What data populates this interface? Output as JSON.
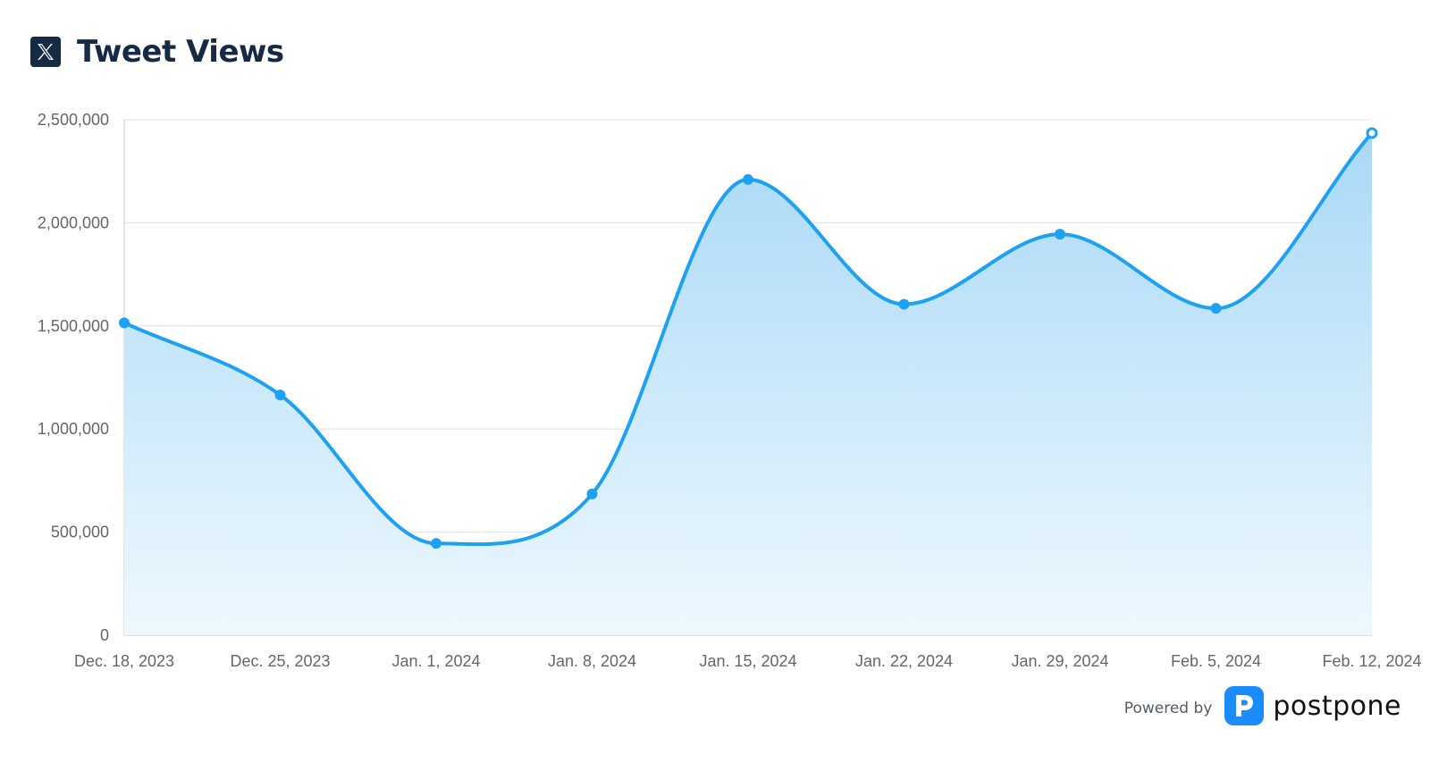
{
  "header": {
    "title": "Tweet Views",
    "icon": "x-logo-icon"
  },
  "footer": {
    "powered_by": "Powered by",
    "brand": "postpone",
    "brand_icon": "postpone-logo-icon"
  },
  "colors": {
    "line": "#1da1f2",
    "fill_top": "#a9d9f7",
    "fill_bottom": "#eef8fe",
    "grid": "#e3e6ea",
    "axis_text": "#666666",
    "title": "#162a45",
    "brand_blue": "#1a8cff"
  },
  "chart_data": {
    "type": "area",
    "categories": [
      "Dec. 18, 2023",
      "Dec. 25, 2023",
      "Jan. 1, 2024",
      "Jan. 8, 2024",
      "Jan. 15, 2024",
      "Jan. 22, 2024",
      "Jan. 29, 2024",
      "Feb. 5, 2024",
      "Feb. 12, 2024"
    ],
    "series": [
      {
        "values": [
          1515000,
          1165000,
          445000,
          685000,
          2210000,
          1605000,
          1945000,
          1585000,
          2435000
        ]
      }
    ],
    "yticks": [
      0,
      500000,
      1000000,
      1500000,
      2000000,
      2500000
    ],
    "ytick_labels": [
      "0",
      "500,000",
      "1,000,000",
      "1,500,000",
      "2,000,000",
      "2,500,000"
    ],
    "ylim": [
      0,
      2500000
    ],
    "grid": true,
    "legend": "none"
  }
}
